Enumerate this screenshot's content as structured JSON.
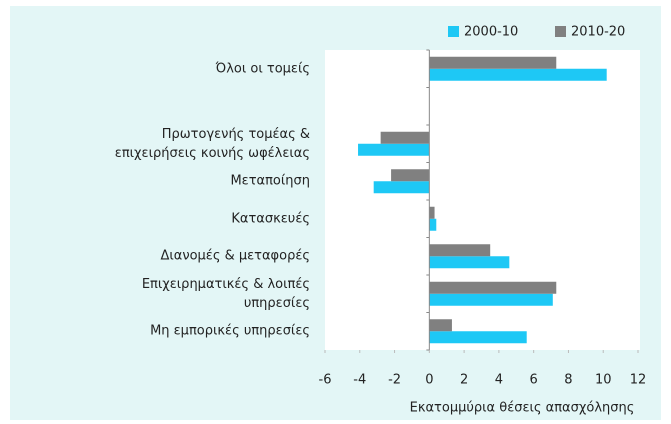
{
  "chart_data": {
    "type": "hbar",
    "categories": [
      "Όλοι οι τομείς",
      null,
      "Πρωτογενής τομέας & επιχειρήσεις κοινής ωφέλειας",
      "Μεταποίηση",
      "Κατασκευές",
      "Διανομές & μεταφορές",
      "Επιχειρηματικές & λοιπές υπηρεσίες",
      "Μη εμπορικές υπηρεσίες"
    ],
    "series": [
      {
        "name": "2000-10",
        "color": "#1ec8f5",
        "values": [
          10.2,
          null,
          -4.1,
          -3.2,
          0.4,
          4.6,
          7.1,
          5.6
        ]
      },
      {
        "name": "2010-20",
        "color": "#808080",
        "values": [
          7.3,
          null,
          -2.8,
          -2.2,
          0.3,
          3.5,
          7.3,
          1.3
        ]
      }
    ],
    "xlabel": "Εκατομμύρια θέσεις απασχόλησης",
    "xlim": [
      -6,
      12
    ],
    "xticks": [
      -6,
      -4,
      -2,
      0,
      2,
      4,
      6,
      8,
      10,
      12
    ],
    "legend": "top-right"
  }
}
